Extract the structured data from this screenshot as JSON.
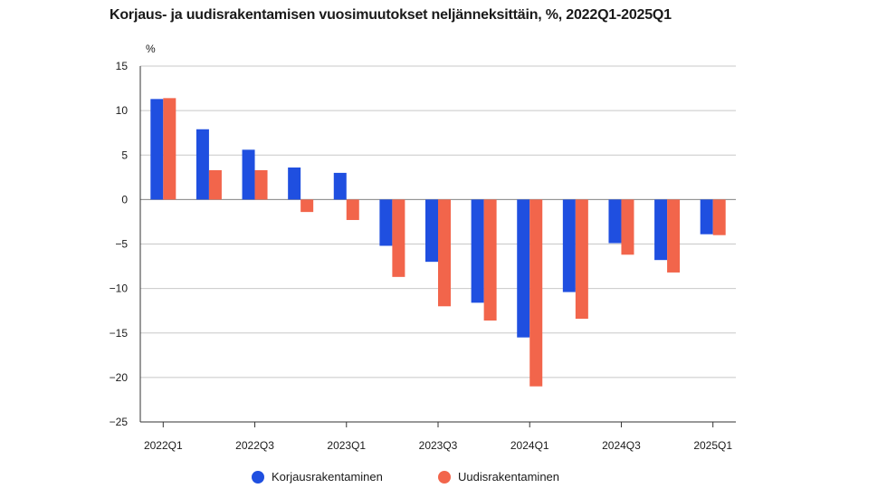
{
  "chart_data": {
    "type": "bar",
    "title": "Korjaus- ja uudisrakentamisen vuosimuutokset neljänneksittäin, %, 2022Q1-2025Q1",
    "ylabel": "%",
    "xlabel": "",
    "ylim": [
      -25,
      15
    ],
    "yticks": [
      15,
      10,
      5,
      0,
      -5,
      -10,
      -15,
      -20,
      -25
    ],
    "ytick_labels": [
      "15",
      "10",
      "5",
      "0",
      "−5",
      "−10",
      "−15",
      "−20",
      "−25"
    ],
    "categories": [
      "2022Q1",
      "2022Q2",
      "2022Q3",
      "2022Q4",
      "2023Q1",
      "2023Q2",
      "2023Q3",
      "2023Q4",
      "2024Q1",
      "2024Q2",
      "2024Q3",
      "2024Q4",
      "2025Q1"
    ],
    "shown_category_labels": [
      "2022Q1",
      "",
      "2022Q3",
      "",
      "2023Q1",
      "",
      "2023Q3",
      "",
      "2024Q1",
      "",
      "2024Q3",
      "",
      "2025Q1"
    ],
    "grid": true,
    "legend_position": "bottom",
    "series": [
      {
        "name": "Korjausrakentaminen",
        "color": "#1f4fe0",
        "values": [
          11.3,
          7.9,
          5.6,
          3.6,
          3.0,
          -5.2,
          -7.0,
          -11.6,
          -15.5,
          -10.4,
          -4.9,
          -6.8,
          -3.9
        ]
      },
      {
        "name": "Uudisrakentaminen",
        "color": "#f2654b",
        "values": [
          11.4,
          3.3,
          3.3,
          -1.4,
          -2.3,
          -8.7,
          -12.0,
          -13.6,
          -21.0,
          -13.4,
          -6.2,
          -8.2,
          -4.0
        ]
      }
    ]
  }
}
